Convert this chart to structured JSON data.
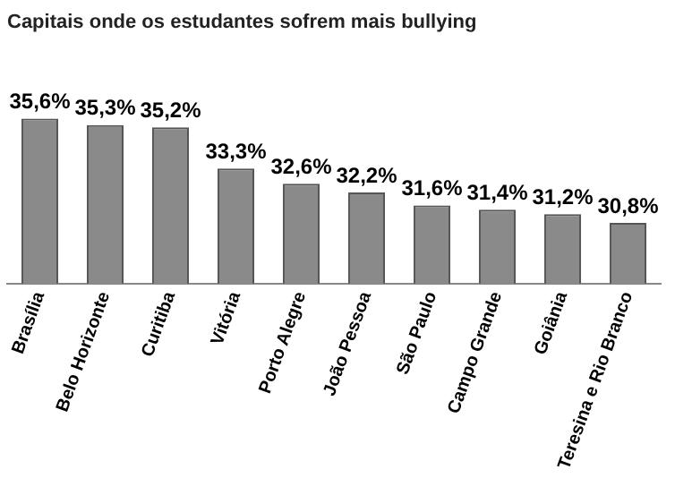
{
  "chart_data": {
    "type": "bar",
    "title": "Capitais onde os estudantes sofrem mais bullying",
    "categories": [
      "Brasília",
      "Belo Horizonte",
      "Curitiba",
      "Vitória",
      "Porto Alegre",
      "João Pessoa",
      "São Paulo",
      "Campo Grande",
      "Goiânia",
      "Teresina e Rio Branco"
    ],
    "values": [
      35.6,
      35.3,
      35.2,
      33.3,
      32.6,
      32.2,
      31.6,
      31.4,
      31.2,
      30.8
    ],
    "value_labels": [
      "35,6%",
      "35,3%",
      "35,2%",
      "33,3%",
      "32,6%",
      "32,2%",
      "31,6%",
      "31,4%",
      "31,2%",
      "30,8%"
    ],
    "color": "#8a8a8a",
    "tick_labels": "x",
    "grid": false,
    "legend": false
  }
}
